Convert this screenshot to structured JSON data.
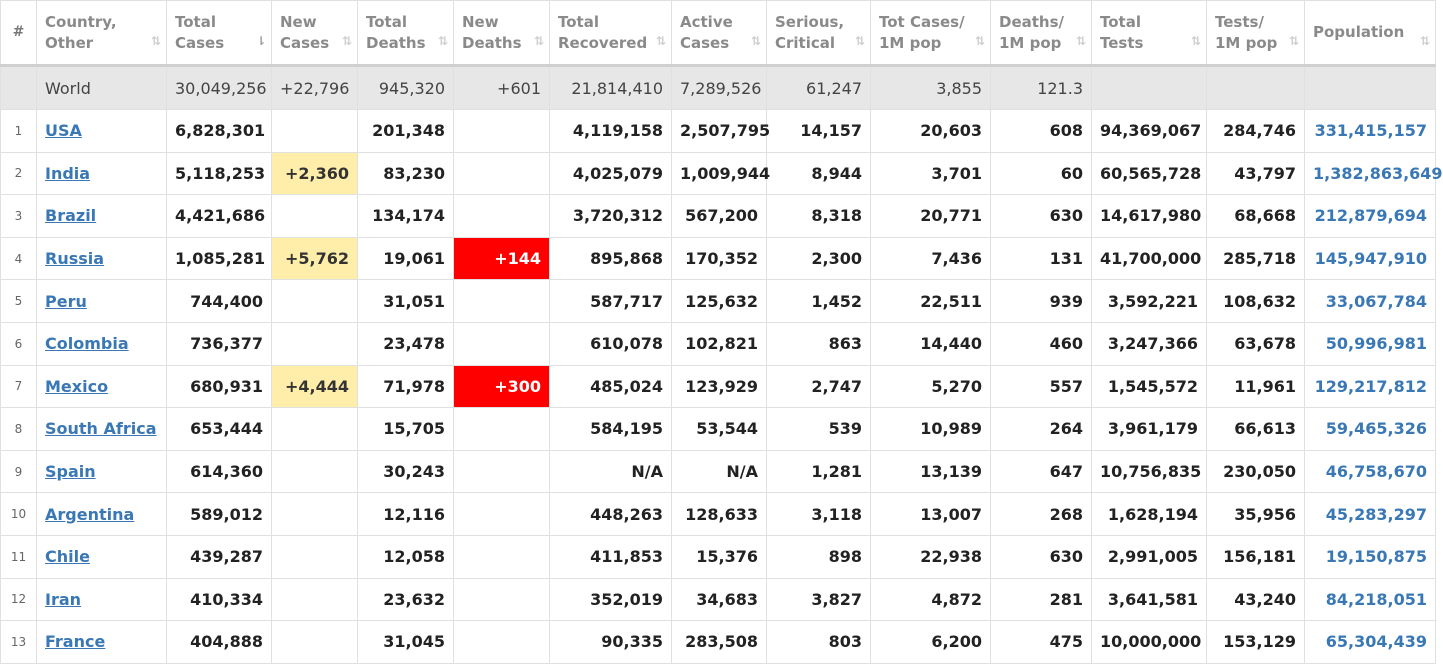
{
  "colors": {
    "new_cases_highlight": "#ffeeaa",
    "new_deaths_highlight": "#ff0000",
    "link": "#3a78b5"
  },
  "headers": [
    {
      "l1": "#",
      "l2": ""
    },
    {
      "l1": "Country,",
      "l2": "Other"
    },
    {
      "l1": "Total",
      "l2": "Cases"
    },
    {
      "l1": "New",
      "l2": "Cases"
    },
    {
      "l1": "Total",
      "l2": "Deaths"
    },
    {
      "l1": "New",
      "l2": "Deaths"
    },
    {
      "l1": "Total",
      "l2": "Recovered"
    },
    {
      "l1": "Active",
      "l2": "Cases"
    },
    {
      "l1": "Serious,",
      "l2": "Critical"
    },
    {
      "l1": "Tot Cases/",
      "l2": "1M pop"
    },
    {
      "l1": "Deaths/",
      "l2": "1M pop"
    },
    {
      "l1": "Total",
      "l2": "Tests"
    },
    {
      "l1": "Tests/",
      "l2": "1M pop"
    },
    {
      "l1": "Population",
      "l2": ""
    }
  ],
  "sort_icon": "⇅",
  "sort_icon_active": "⇂",
  "world": {
    "label": "World",
    "total_cases": "30,049,256",
    "new_cases": "+22,796",
    "total_deaths": "945,320",
    "new_deaths": "+601",
    "total_recovered": "21,814,410",
    "active_cases": "7,289,526",
    "serious": "61,247",
    "cases_per_1m": "3,855",
    "deaths_per_1m": "121.3",
    "total_tests": "",
    "tests_per_1m": "",
    "population": ""
  },
  "rows": [
    {
      "num": "1",
      "country": "USA",
      "total_cases": "6,828,301",
      "new_cases": "",
      "total_deaths": "201,348",
      "new_deaths": "",
      "total_recovered": "4,119,158",
      "active_cases": "2,507,795",
      "serious": "14,157",
      "cases_per_1m": "20,603",
      "deaths_per_1m": "608",
      "total_tests": "94,369,067",
      "tests_per_1m": "284,746",
      "population": "331,415,157"
    },
    {
      "num": "2",
      "country": "India",
      "total_cases": "5,118,253",
      "new_cases": "+2,360",
      "total_deaths": "83,230",
      "new_deaths": "",
      "total_recovered": "4,025,079",
      "active_cases": "1,009,944",
      "serious": "8,944",
      "cases_per_1m": "3,701",
      "deaths_per_1m": "60",
      "total_tests": "60,565,728",
      "tests_per_1m": "43,797",
      "population": "1,382,863,649"
    },
    {
      "num": "3",
      "country": "Brazil",
      "total_cases": "4,421,686",
      "new_cases": "",
      "total_deaths": "134,174",
      "new_deaths": "",
      "total_recovered": "3,720,312",
      "active_cases": "567,200",
      "serious": "8,318",
      "cases_per_1m": "20,771",
      "deaths_per_1m": "630",
      "total_tests": "14,617,980",
      "tests_per_1m": "68,668",
      "population": "212,879,694"
    },
    {
      "num": "4",
      "country": "Russia",
      "total_cases": "1,085,281",
      "new_cases": "+5,762",
      "total_deaths": "19,061",
      "new_deaths": "+144",
      "total_recovered": "895,868",
      "active_cases": "170,352",
      "serious": "2,300",
      "cases_per_1m": "7,436",
      "deaths_per_1m": "131",
      "total_tests": "41,700,000",
      "tests_per_1m": "285,718",
      "population": "145,947,910"
    },
    {
      "num": "5",
      "country": "Peru",
      "total_cases": "744,400",
      "new_cases": "",
      "total_deaths": "31,051",
      "new_deaths": "",
      "total_recovered": "587,717",
      "active_cases": "125,632",
      "serious": "1,452",
      "cases_per_1m": "22,511",
      "deaths_per_1m": "939",
      "total_tests": "3,592,221",
      "tests_per_1m": "108,632",
      "population": "33,067,784"
    },
    {
      "num": "6",
      "country": "Colombia",
      "total_cases": "736,377",
      "new_cases": "",
      "total_deaths": "23,478",
      "new_deaths": "",
      "total_recovered": "610,078",
      "active_cases": "102,821",
      "serious": "863",
      "cases_per_1m": "14,440",
      "deaths_per_1m": "460",
      "total_tests": "3,247,366",
      "tests_per_1m": "63,678",
      "population": "50,996,981"
    },
    {
      "num": "7",
      "country": "Mexico",
      "total_cases": "680,931",
      "new_cases": "+4,444",
      "total_deaths": "71,978",
      "new_deaths": "+300",
      "total_recovered": "485,024",
      "active_cases": "123,929",
      "serious": "2,747",
      "cases_per_1m": "5,270",
      "deaths_per_1m": "557",
      "total_tests": "1,545,572",
      "tests_per_1m": "11,961",
      "population": "129,217,812"
    },
    {
      "num": "8",
      "country": "South Africa",
      "total_cases": "653,444",
      "new_cases": "",
      "total_deaths": "15,705",
      "new_deaths": "",
      "total_recovered": "584,195",
      "active_cases": "53,544",
      "serious": "539",
      "cases_per_1m": "10,989",
      "deaths_per_1m": "264",
      "total_tests": "3,961,179",
      "tests_per_1m": "66,613",
      "population": "59,465,326"
    },
    {
      "num": "9",
      "country": "Spain",
      "total_cases": "614,360",
      "new_cases": "",
      "total_deaths": "30,243",
      "new_deaths": "",
      "total_recovered": "N/A",
      "active_cases": "N/A",
      "serious": "1,281",
      "cases_per_1m": "13,139",
      "deaths_per_1m": "647",
      "total_tests": "10,756,835",
      "tests_per_1m": "230,050",
      "population": "46,758,670"
    },
    {
      "num": "10",
      "country": "Argentina",
      "total_cases": "589,012",
      "new_cases": "",
      "total_deaths": "12,116",
      "new_deaths": "",
      "total_recovered": "448,263",
      "active_cases": "128,633",
      "serious": "3,118",
      "cases_per_1m": "13,007",
      "deaths_per_1m": "268",
      "total_tests": "1,628,194",
      "tests_per_1m": "35,956",
      "population": "45,283,297"
    },
    {
      "num": "11",
      "country": "Chile",
      "total_cases": "439,287",
      "new_cases": "",
      "total_deaths": "12,058",
      "new_deaths": "",
      "total_recovered": "411,853",
      "active_cases": "15,376",
      "serious": "898",
      "cases_per_1m": "22,938",
      "deaths_per_1m": "630",
      "total_tests": "2,991,005",
      "tests_per_1m": "156,181",
      "population": "19,150,875"
    },
    {
      "num": "12",
      "country": "Iran",
      "total_cases": "410,334",
      "new_cases": "",
      "total_deaths": "23,632",
      "new_deaths": "",
      "total_recovered": "352,019",
      "active_cases": "34,683",
      "serious": "3,827",
      "cases_per_1m": "4,872",
      "deaths_per_1m": "281",
      "total_tests": "3,641,581",
      "tests_per_1m": "43,240",
      "population": "84,218,051"
    },
    {
      "num": "13",
      "country": "France",
      "total_cases": "404,888",
      "new_cases": "",
      "total_deaths": "31,045",
      "new_deaths": "",
      "total_recovered": "90,335",
      "active_cases": "283,508",
      "serious": "803",
      "cases_per_1m": "6,200",
      "deaths_per_1m": "475",
      "total_tests": "10,000,000",
      "tests_per_1m": "153,129",
      "population": "65,304,439"
    }
  ]
}
